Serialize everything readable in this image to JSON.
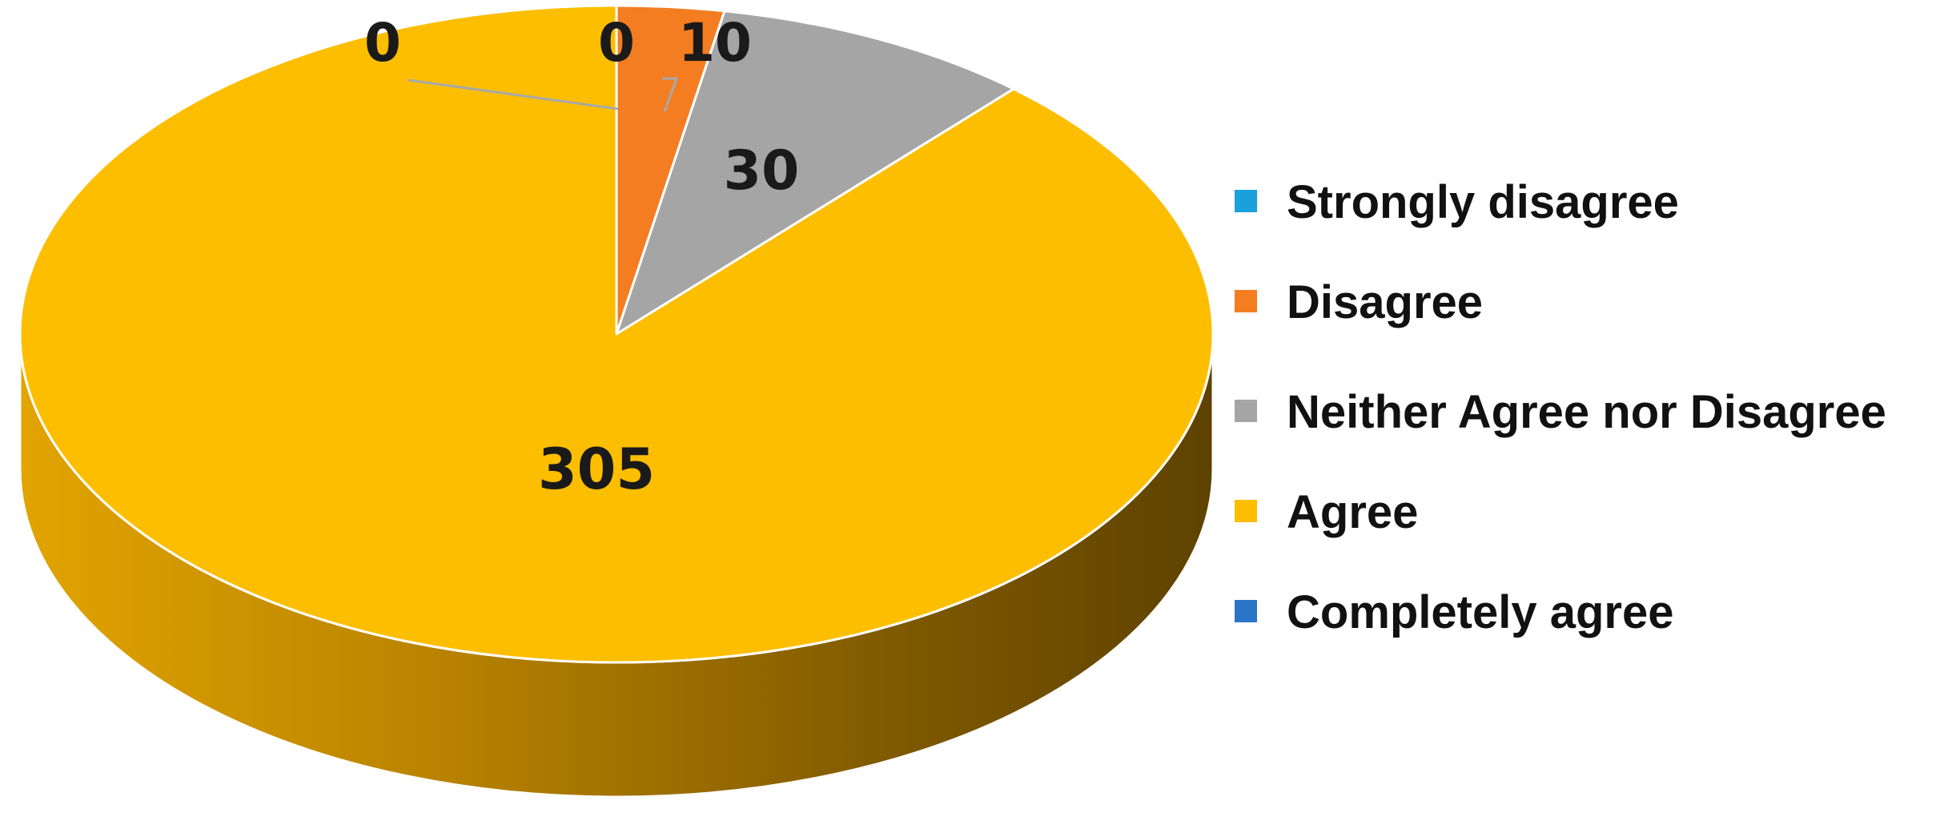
{
  "chart_data": {
    "type": "pie",
    "title": "",
    "style": "3d",
    "legend_position": "right",
    "slices": [
      {
        "label": "Strongly disagree",
        "value": 0,
        "color": "#1aa0dc"
      },
      {
        "label": "Disagree",
        "value": 10,
        "color": "#f47d22"
      },
      {
        "label": "Neither Agree nor Disagree",
        "value": 30,
        "color": "#a5a5a5"
      },
      {
        "label": "Agree",
        "value": 305,
        "color": "#fdbe00"
      },
      {
        "label": "Completely agree",
        "value": 0,
        "color": "#2a74c6"
      }
    ],
    "data_labels": [
      "0",
      "10",
      "30",
      "305",
      "0"
    ]
  }
}
